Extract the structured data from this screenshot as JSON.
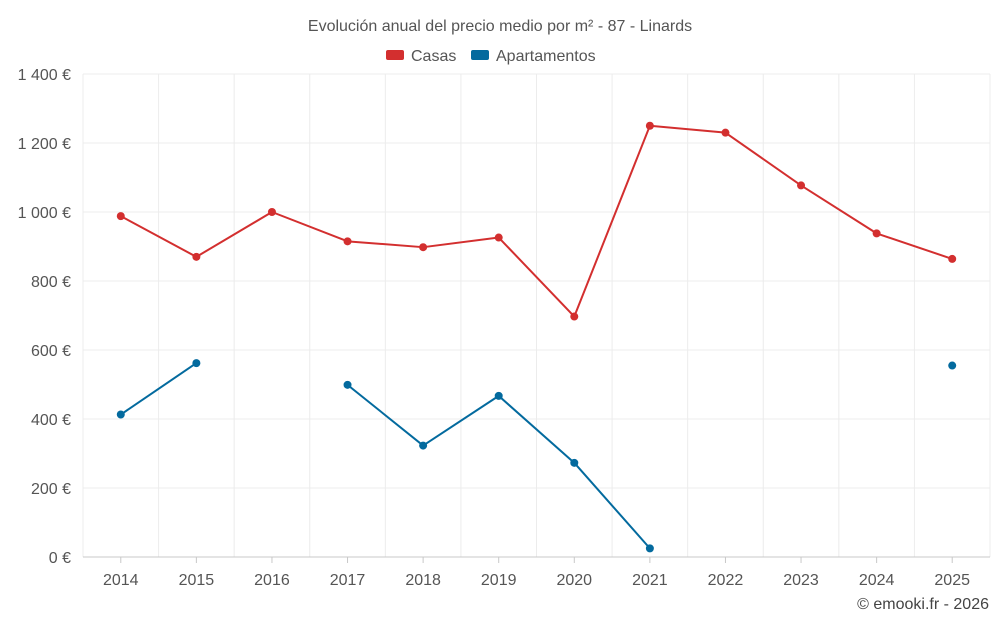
{
  "chart_data": {
    "type": "line",
    "title": "Evolución anual del precio medio por m² - 87 - Linards",
    "categories": [
      "2014",
      "2015",
      "2016",
      "2017",
      "2018",
      "2019",
      "2020",
      "2021",
      "2022",
      "2023",
      "2024",
      "2025"
    ],
    "ylim": [
      0,
      1400
    ],
    "yticks": [
      0,
      200,
      400,
      600,
      800,
      1000,
      1200,
      1400
    ],
    "ytick_labels": [
      "0 €",
      "200 €",
      "400 €",
      "600 €",
      "800 €",
      "1 000 €",
      "1 200 €",
      "1 400 €"
    ],
    "grid": true,
    "legend_position": "top-center",
    "series": [
      {
        "name": "Casas",
        "color": "#d32f2f",
        "values": [
          988,
          870,
          1000,
          915,
          898,
          926,
          697,
          1250,
          1230,
          1077,
          938,
          864
        ]
      },
      {
        "name": "Apartamentos",
        "color": "#036a9e",
        "values": [
          413,
          562,
          null,
          499,
          323,
          467,
          273,
          25,
          null,
          null,
          null,
          555
        ]
      }
    ],
    "credit": "© emooki.fr - 2026"
  }
}
